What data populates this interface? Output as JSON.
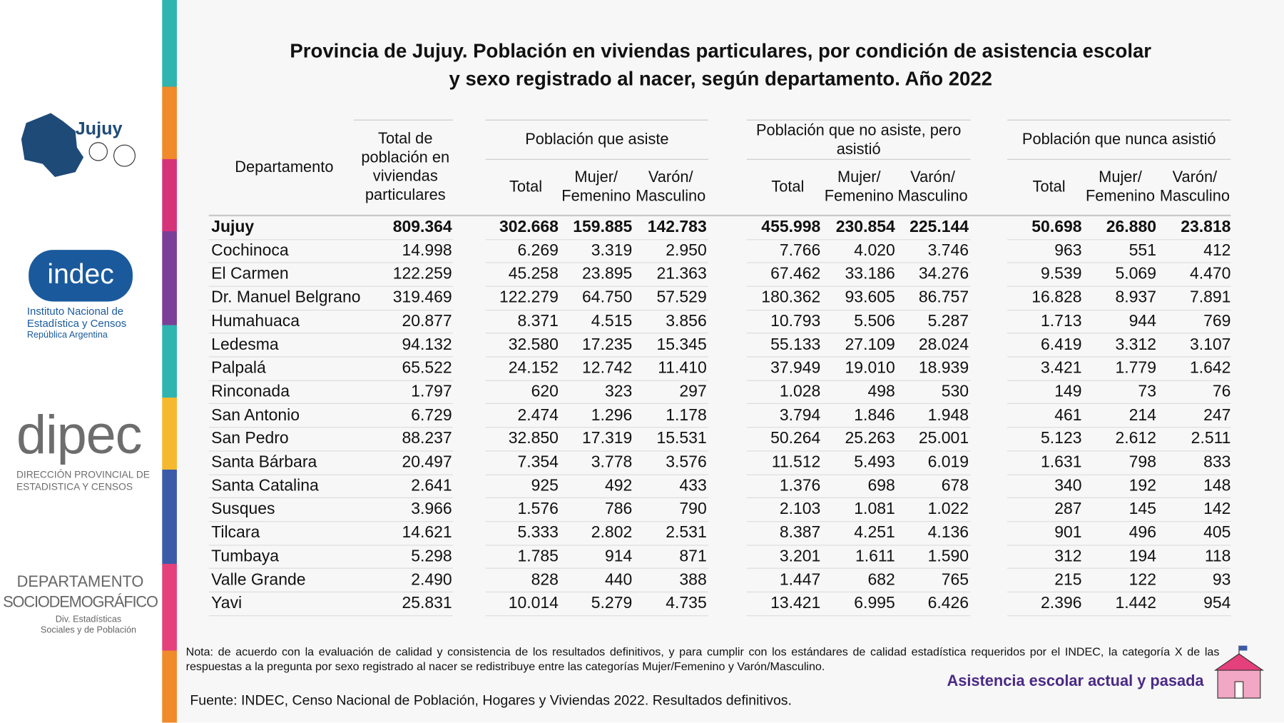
{
  "sidebar": {
    "jujuy": "Jujuy",
    "indec": {
      "logo": "indec",
      "name": "Instituto Nacional de Estadística y Censos",
      "country": "República Argentina"
    },
    "dipec": {
      "logo": "dipec",
      "name": "DIRECCIÓN PROVINCIAL DE ESTADISTICA Y CENSOS"
    },
    "depto": {
      "line1": "DEPARTAMENTO",
      "line2": "SOCIODEMOGRÁFICO",
      "sub": "Div. Estadísticas Sociales y de Población"
    }
  },
  "title": "Provincia de Jujuy. Población en viviendas particulares, por condición de asistencia escolar y sexo registrado al nacer, según departamento. Año 2022",
  "table": {
    "dept_header": "Departamento",
    "total_header": "Total de población en viviendas particulares",
    "groups": [
      {
        "title": "Población que asiste",
        "columns": [
          "Total",
          "Mujer/ Femenino",
          "Varón/ Masculino"
        ]
      },
      {
        "title": "Población que no asiste, pero asistió",
        "columns": [
          "Total",
          "Mujer/ Femenino",
          "Varón/ Masculino"
        ]
      },
      {
        "title": "Población que nunca asistió",
        "columns": [
          "Total",
          "Mujer/ Femenino",
          "Varón/ Masculino"
        ]
      }
    ],
    "rows": [
      [
        "Jujuy",
        "809.364",
        "302.668",
        "159.885",
        "142.783",
        "455.998",
        "230.854",
        "225.144",
        "50.698",
        "26.880",
        "23.818"
      ],
      [
        "Cochinoca",
        "14.998",
        "6.269",
        "3.319",
        "2.950",
        "7.766",
        "4.020",
        "3.746",
        "963",
        "551",
        "412"
      ],
      [
        "El Carmen",
        "122.259",
        "45.258",
        "23.895",
        "21.363",
        "67.462",
        "33.186",
        "34.276",
        "9.539",
        "5.069",
        "4.470"
      ],
      [
        "Dr. Manuel Belgrano",
        "319.469",
        "122.279",
        "64.750",
        "57.529",
        "180.362",
        "93.605",
        "86.757",
        "16.828",
        "8.937",
        "7.891"
      ],
      [
        "Humahuaca",
        "20.877",
        "8.371",
        "4.515",
        "3.856",
        "10.793",
        "5.506",
        "5.287",
        "1.713",
        "944",
        "769"
      ],
      [
        "Ledesma",
        "94.132",
        "32.580",
        "17.235",
        "15.345",
        "55.133",
        "27.109",
        "28.024",
        "6.419",
        "3.312",
        "3.107"
      ],
      [
        "Palpalá",
        "65.522",
        "24.152",
        "12.742",
        "11.410",
        "37.949",
        "19.010",
        "18.939",
        "3.421",
        "1.779",
        "1.642"
      ],
      [
        "Rinconada",
        "1.797",
        "620",
        "323",
        "297",
        "1.028",
        "498",
        "530",
        "149",
        "73",
        "76"
      ],
      [
        "San Antonio",
        "6.729",
        "2.474",
        "1.296",
        "1.178",
        "3.794",
        "1.846",
        "1.948",
        "461",
        "214",
        "247"
      ],
      [
        "San Pedro",
        "88.237",
        "32.850",
        "17.319",
        "15.531",
        "50.264",
        "25.263",
        "25.001",
        "5.123",
        "2.612",
        "2.511"
      ],
      [
        "Santa Bárbara",
        "20.497",
        "7.354",
        "3.778",
        "3.576",
        "11.512",
        "5.493",
        "6.019",
        "1.631",
        "798",
        "833"
      ],
      [
        "Santa Catalina",
        "2.641",
        "925",
        "492",
        "433",
        "1.376",
        "698",
        "678",
        "340",
        "192",
        "148"
      ],
      [
        "Susques",
        "3.966",
        "1.576",
        "786",
        "790",
        "2.103",
        "1.081",
        "1.022",
        "287",
        "145",
        "142"
      ],
      [
        "Tilcara",
        "14.621",
        "5.333",
        "2.802",
        "2.531",
        "8.387",
        "4.251",
        "4.136",
        "901",
        "496",
        "405"
      ],
      [
        "Tumbaya",
        "5.298",
        "1.785",
        "914",
        "871",
        "3.201",
        "1.611",
        "1.590",
        "312",
        "194",
        "118"
      ],
      [
        "Valle Grande",
        "2.490",
        "828",
        "440",
        "388",
        "1.447",
        "682",
        "765",
        "215",
        "122",
        "93"
      ],
      [
        "Yavi",
        "25.831",
        "10.014",
        "5.279",
        "4.735",
        "13.421",
        "6.995",
        "6.426",
        "2.396",
        "1.442",
        "954"
      ]
    ]
  },
  "note": "Nota: de acuerdo con la evaluación de calidad y consistencia de los resultados definitivos, y para cumplir con los estándares de calidad estadística requeridos por el INDEC, la categoría X de las respuestas a la pregunta por sexo registrado al nacer se redistribuye entre las categorías Mujer/Femenino y Varón/Masculino.",
  "source": "Fuente: INDEC, Censo Nacional de Población, Hogares y Viviendas 2022. Resultados definitivos.",
  "footer": "Asistencia escolar actual y pasada"
}
